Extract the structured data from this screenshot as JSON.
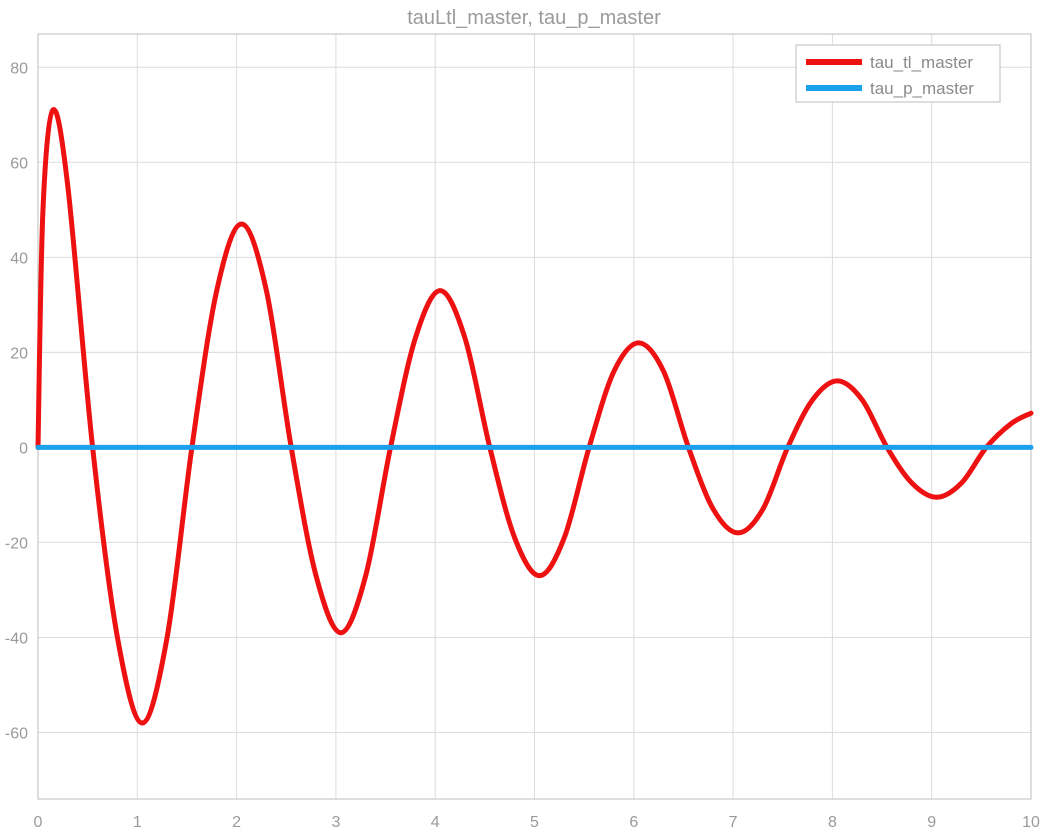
{
  "chart_data": {
    "type": "line",
    "title": "tauLtl_master, tau_p_master",
    "xlabel": "",
    "ylabel": "",
    "xlim": [
      0,
      10
    ],
    "ylim": [
      -74,
      87
    ],
    "grid": true,
    "legend_position": "top-right",
    "x_ticks": [
      0,
      1,
      2,
      3,
      4,
      5,
      6,
      7,
      8,
      9,
      10
    ],
    "x_tick_labels": [
      "0",
      "1",
      "2",
      "3",
      "4",
      "5",
      "6",
      "7",
      "8",
      "9",
      "10"
    ],
    "y_ticks": [
      -60,
      -40,
      -20,
      0,
      20,
      40,
      60,
      80
    ],
    "y_tick_labels": [
      "-60",
      "-40",
      "-20",
      "0",
      "20",
      "40",
      "60",
      "80"
    ],
    "series": [
      {
        "name": "tau_tl_master",
        "color": "#ee1111",
        "x": [
          0,
          0.05,
          0.15,
          0.3,
          0.55,
          0.8,
          1.05,
          1.3,
          1.55,
          1.8,
          2.05,
          2.3,
          2.55,
          2.8,
          3.05,
          3.3,
          3.55,
          3.8,
          4.05,
          4.3,
          4.55,
          4.8,
          5.05,
          5.3,
          5.55,
          5.8,
          6.05,
          6.3,
          6.55,
          6.8,
          7.05,
          7.3,
          7.55,
          7.8,
          8.05,
          8.3,
          8.55,
          8.8,
          9.05,
          9.3,
          9.55,
          9.8,
          10.0
        ],
        "y": [
          0,
          50,
          71,
          55,
          0,
          -40,
          -58,
          -40,
          0,
          33,
          47,
          33,
          0,
          -27,
          -39,
          -27,
          0,
          23,
          33,
          23,
          0,
          -19,
          -27,
          -19,
          0,
          16,
          22,
          16,
          0,
          -13,
          -18,
          -13,
          0,
          10,
          14,
          10,
          0,
          -7.5,
          -10.5,
          -7.5,
          0,
          5,
          7.2
        ]
      },
      {
        "name": "tau_p_master",
        "color": "#1ba1ec",
        "x": [
          0,
          10
        ],
        "y": [
          0,
          0
        ]
      }
    ]
  }
}
